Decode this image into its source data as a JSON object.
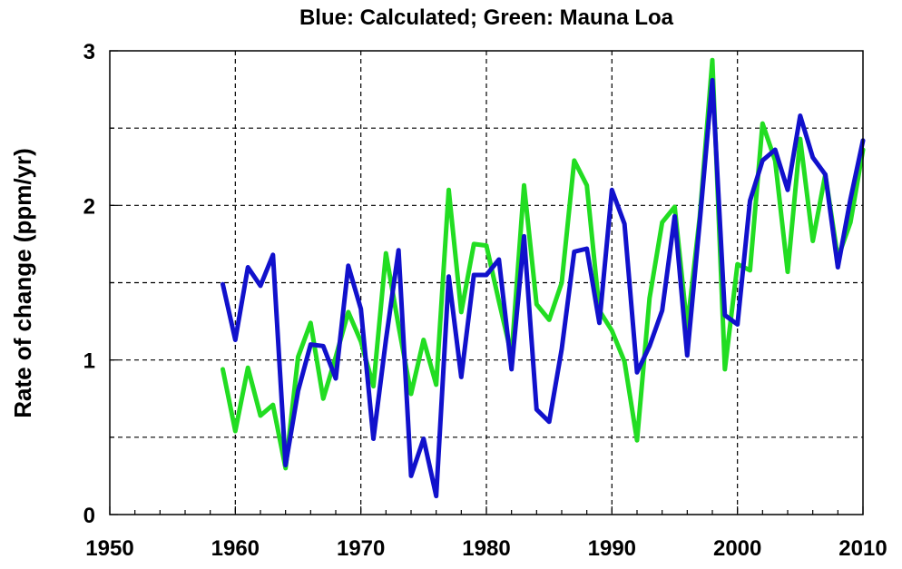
{
  "chart_data": {
    "type": "line",
    "title": "Blue: Calculated;  Green: Mauna Loa",
    "xlabel": "",
    "ylabel": "Rate of change  (ppm/yr)",
    "xlim": [
      1950,
      2010
    ],
    "ylim": [
      0,
      3
    ],
    "x_ticks": [
      1950,
      1960,
      1970,
      1980,
      1990,
      2000,
      2010
    ],
    "y_ticks": [
      0,
      1,
      2,
      3
    ],
    "x_tick_labels": [
      "1950",
      "1960",
      "1970",
      "1980",
      "1990",
      "2000",
      "2010"
    ],
    "y_tick_labels": [
      "0",
      "1",
      "2",
      "3"
    ],
    "grid": true,
    "colors": {
      "green": "#22dd22",
      "blue": "#1111cc"
    },
    "series": [
      {
        "key": "green",
        "x": [
          1959,
          1960,
          1961,
          1962,
          1963,
          1964,
          1965,
          1966,
          1967,
          1968,
          1969,
          1970,
          1971,
          1972,
          1973,
          1974,
          1975,
          1976,
          1977,
          1978,
          1979,
          1980,
          1981,
          1982,
          1983,
          1984,
          1985,
          1986,
          1987,
          1988,
          1989,
          1990,
          1991,
          1992,
          1993,
          1994,
          1995,
          1996,
          1997,
          1998,
          1999,
          2000,
          2001,
          2002,
          2003,
          2004,
          2005,
          2006,
          2007,
          2008,
          2009,
          2010
        ],
        "values": [
          0.94,
          0.54,
          0.95,
          0.64,
          0.71,
          0.3,
          1.02,
          1.24,
          0.75,
          1.02,
          1.31,
          1.12,
          0.83,
          1.69,
          1.22,
          0.78,
          1.13,
          0.84,
          2.1,
          1.31,
          1.75,
          1.74,
          1.38,
          1.03,
          2.13,
          1.36,
          1.26,
          1.5,
          2.29,
          2.13,
          1.32,
          1.19,
          0.99,
          0.48,
          1.4,
          1.89,
          1.99,
          1.21,
          1.93,
          2.94,
          0.94,
          1.62,
          1.58,
          2.53,
          2.29,
          1.57,
          2.43,
          1.77,
          2.2,
          1.66,
          1.89,
          2.36
        ]
      },
      {
        "key": "blue",
        "x": [
          1959,
          1960,
          1961,
          1962,
          1963,
          1964,
          1965,
          1966,
          1967,
          1968,
          1969,
          1970,
          1971,
          1972,
          1973,
          1974,
          1975,
          1976,
          1977,
          1978,
          1979,
          1980,
          1981,
          1982,
          1983,
          1984,
          1985,
          1986,
          1987,
          1988,
          1989,
          1990,
          1991,
          1992,
          1993,
          1994,
          1995,
          1996,
          1997,
          1998,
          1999,
          2000,
          2001,
          2002,
          2003,
          2004,
          2005,
          2006,
          2007,
          2008,
          2009,
          2010
        ],
        "values": [
          1.49,
          1.13,
          1.6,
          1.48,
          1.68,
          0.32,
          0.8,
          1.1,
          1.09,
          0.88,
          1.61,
          1.33,
          0.49,
          1.13,
          1.71,
          0.25,
          0.49,
          0.12,
          1.54,
          0.89,
          1.55,
          1.55,
          1.65,
          0.94,
          1.8,
          0.68,
          0.6,
          1.07,
          1.7,
          1.72,
          1.24,
          2.1,
          1.88,
          0.92,
          1.09,
          1.32,
          1.93,
          1.03,
          1.9,
          2.81,
          1.29,
          1.23,
          2.03,
          2.29,
          2.36,
          2.1,
          2.58,
          2.31,
          2.2,
          1.6,
          2.04,
          2.42
        ]
      }
    ]
  }
}
